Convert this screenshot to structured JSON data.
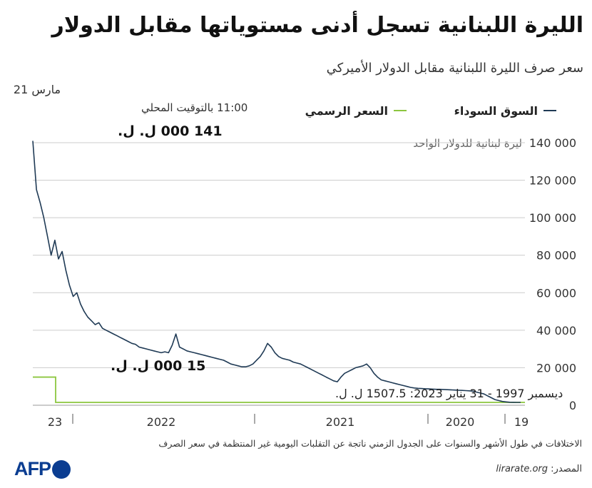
{
  "title": "الليرة اللبنانية تسجل أدنى مستوياتها مقابل الدولار",
  "subtitle": "سعر صرف الليرة اللبنانية مقابل الدولار الأميركي",
  "legend": {
    "black_market": "السوق السوداء",
    "official": "السعر الرسمي"
  },
  "colors": {
    "black_market": "#1f3a55",
    "official": "#8cc63f",
    "grid": "#cccccc",
    "axis_text": "#333333"
  },
  "annotations": {
    "date": "21 مارس",
    "time": "11:00 بالتوقيت المحلي",
    "peak_value": "141 000 ل. ل.",
    "official_new": "15 000 ل. ل.",
    "official_old": "ديسمبر 1997 - 31 يناير 2023: 1507.5 ل. ل."
  },
  "footnote": "الاختلافات في طول الأشهر والسنوات على الجدول الزمني ناتجة عن التقلبات اليومية غير المنتظمة في سعر الصرف",
  "source": {
    "label": "المصدر:",
    "value": "lirarate.org"
  },
  "logo": {
    "text": "AFP"
  },
  "chart_data": {
    "type": "line",
    "ylabel": "ليرة لبنانية للدولار الواحد",
    "ylim": [
      0,
      140000
    ],
    "y_ticks": [
      "0",
      "20 000",
      "40 000",
      "60 000",
      "80 000",
      "100 000",
      "120 000",
      "140 000"
    ],
    "x_ticks": [
      "19",
      "2020",
      "2021",
      "2022",
      "23"
    ],
    "x_direction": "right-to-left",
    "grid": true,
    "legend_position": "top-right",
    "series": [
      {
        "name": "السوق السوداء",
        "time_order": "latest-first",
        "values": [
          141000,
          115000,
          108000,
          100000,
          90000,
          80000,
          88000,
          78000,
          82000,
          72000,
          64000,
          58000,
          60000,
          54000,
          50000,
          47000,
          45000,
          43000,
          44000,
          41000,
          40000,
          39000,
          38000,
          37000,
          36000,
          35000,
          34000,
          33000,
          32500,
          31000,
          30500,
          30000,
          29500,
          29000,
          28500,
          28000,
          28500,
          28000,
          32000,
          38000,
          31000,
          30000,
          29000,
          28500,
          28000,
          27500,
          27000,
          26500,
          26000,
          25500,
          25000,
          24500,
          24000,
          23000,
          22000,
          21500,
          21000,
          20500,
          20500,
          21000,
          22000,
          24000,
          26000,
          29000,
          33000,
          31000,
          28000,
          26000,
          25000,
          24500,
          24000,
          23000,
          22500,
          22000,
          21000,
          20000,
          19000,
          18000,
          17000,
          16000,
          15000,
          14000,
          13000,
          12500,
          15000,
          17000,
          18000,
          19000,
          20000,
          20500,
          21000,
          22000,
          20000,
          17000,
          15000,
          13500,
          13000,
          12500,
          12000,
          11500,
          11000,
          10500,
          10000,
          9500,
          9200,
          9000,
          8900,
          8800,
          8700,
          8600,
          8500,
          8500,
          8400,
          8300,
          8200,
          8100,
          8000,
          7900,
          7800,
          7700,
          7500,
          7000,
          6500,
          6000,
          5000,
          4000,
          3000,
          2500,
          2000,
          1800,
          1600,
          1550,
          1520,
          1507.5
        ]
      },
      {
        "name": "السعر الرسمي",
        "time_order": "latest-first",
        "values": [
          15000,
          15000,
          1507.5,
          1507.5
        ]
      }
    ]
  }
}
